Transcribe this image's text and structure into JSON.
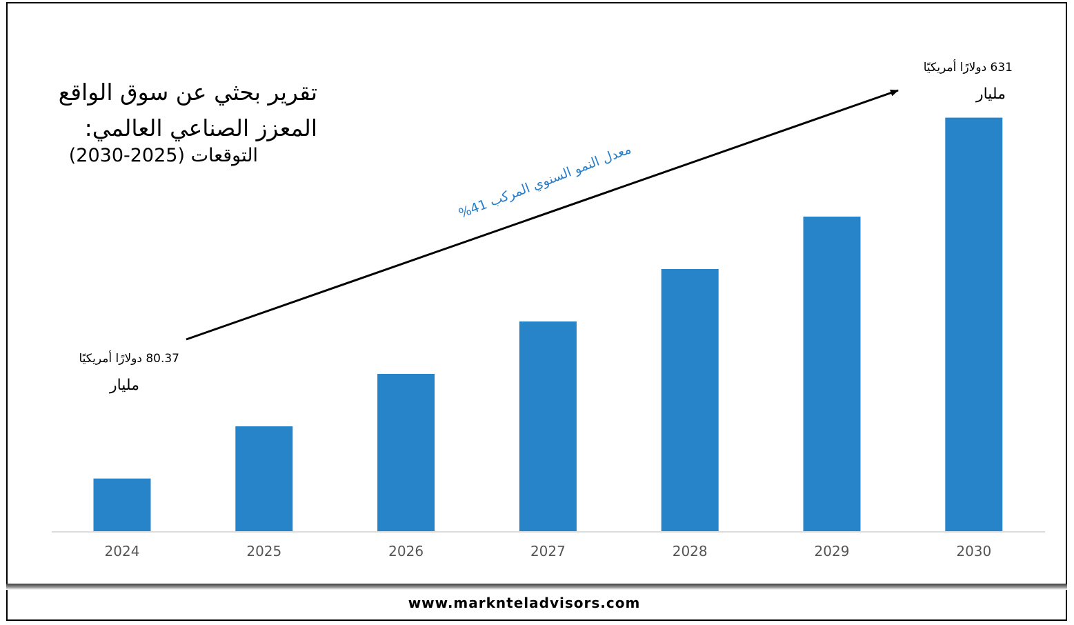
{
  "title_line1": "تقرير بحثي عن سوق الواقع",
  "title_line2": "المعزز الصناعي العالمي:",
  "subtitle": "التوقعات (2025-2030)",
  "cagr_label": "معدل النمو السنوي المركب 41%",
  "start_amount": "80.37 دولارًا أمريكيًا",
  "start_unit": "مليار",
  "end_amount": "631 دولارًا أمريكيًا",
  "end_unit": "مليار",
  "footer_url": "www.marknteladvisors.com",
  "colors": {
    "bar": "#2884c8",
    "arrow": "#000000",
    "cagr_text": "#2a7ec8",
    "axis_text": "#555555"
  },
  "chart_data": {
    "type": "bar",
    "categories": [
      "2024",
      "2025",
      "2026",
      "2027",
      "2028",
      "2029",
      "2030"
    ],
    "values": [
      80.37,
      160,
      240,
      320,
      400,
      480,
      631
    ],
    "ylim": [
      0,
      800
    ],
    "grid": false,
    "legend": "none",
    "title": "",
    "xlabel": "",
    "ylabel": ""
  }
}
